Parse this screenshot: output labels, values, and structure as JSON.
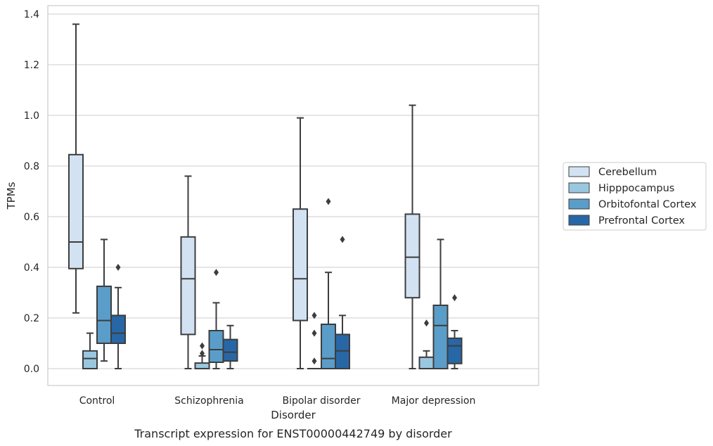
{
  "chart_data": {
    "type": "box",
    "title": "",
    "caption": "Transcript expression for ENST00000442749 by disorder",
    "xlabel": "Disorder",
    "ylabel": "TPMs",
    "ylim": [
      -0.065,
      1.43
    ],
    "yticks": [
      "0.0",
      "0.2",
      "0.4",
      "0.6",
      "0.8",
      "1.0",
      "1.2",
      "1.4"
    ],
    "grid": "horizontal",
    "legend_position": "right",
    "categories": [
      "Control",
      "Schizophrenia",
      "Bipolar disorder",
      "Major depression"
    ],
    "series": [
      {
        "name": "Cerebellum",
        "color": "#d2e2f2",
        "boxes": [
          {
            "whislo": 0.22,
            "q1": 0.395,
            "med": 0.5,
            "q3": 0.845,
            "whishi": 1.36,
            "fliers": []
          },
          {
            "whislo": 0.0,
            "q1": 0.135,
            "med": 0.355,
            "q3": 0.52,
            "whishi": 0.76,
            "fliers": []
          },
          {
            "whislo": 0.0,
            "q1": 0.19,
            "med": 0.355,
            "q3": 0.63,
            "whishi": 0.99,
            "fliers": []
          },
          {
            "whislo": 0.0,
            "q1": 0.28,
            "med": 0.44,
            "q3": 0.61,
            "whishi": 1.04,
            "fliers": []
          }
        ]
      },
      {
        "name": "Hipppocampus",
        "color": "#9ac7e0",
        "boxes": [
          {
            "whislo": 0.0,
            "q1": 0.0,
            "med": 0.04,
            "q3": 0.07,
            "whishi": 0.14,
            "fliers": []
          },
          {
            "whislo": 0.0,
            "q1": 0.0,
            "med": 0.0,
            "q3": 0.022,
            "whishi": 0.05,
            "fliers": [
              0.06,
              0.09
            ]
          },
          {
            "whislo": 0.0,
            "q1": 0.0,
            "med": 0.0,
            "q3": 0.0,
            "whishi": 0.0,
            "fliers": [
              0.03,
              0.14,
              0.21
            ]
          },
          {
            "whislo": 0.0,
            "q1": 0.0,
            "med": 0.0,
            "q3": 0.045,
            "whishi": 0.07,
            "fliers": [
              0.18
            ]
          }
        ]
      },
      {
        "name": "Orbitofontal Cortex",
        "color": "#5b9dc9",
        "boxes": [
          {
            "whislo": 0.03,
            "q1": 0.1,
            "med": 0.19,
            "q3": 0.325,
            "whishi": 0.51,
            "fliers": []
          },
          {
            "whislo": 0.0,
            "q1": 0.025,
            "med": 0.075,
            "q3": 0.15,
            "whishi": 0.26,
            "fliers": [
              0.38
            ]
          },
          {
            "whislo": 0.0,
            "q1": 0.0,
            "med": 0.04,
            "q3": 0.175,
            "whishi": 0.38,
            "fliers": [
              0.66
            ]
          },
          {
            "whislo": 0.0,
            "q1": 0.0,
            "med": 0.17,
            "q3": 0.25,
            "whishi": 0.51,
            "fliers": []
          }
        ]
      },
      {
        "name": "Prefrontal Cortex",
        "color": "#2867a6",
        "boxes": [
          {
            "whislo": 0.0,
            "q1": 0.1,
            "med": 0.14,
            "q3": 0.21,
            "whishi": 0.32,
            "fliers": [
              0.4
            ]
          },
          {
            "whislo": 0.0,
            "q1": 0.03,
            "med": 0.065,
            "q3": 0.115,
            "whishi": 0.17,
            "fliers": []
          },
          {
            "whislo": 0.0,
            "q1": 0.0,
            "med": 0.07,
            "q3": 0.135,
            "whishi": 0.21,
            "fliers": [
              0.51
            ]
          },
          {
            "whislo": 0.0,
            "q1": 0.02,
            "med": 0.09,
            "q3": 0.12,
            "whishi": 0.15,
            "fliers": [
              0.28
            ]
          }
        ]
      }
    ]
  },
  "colors": {
    "line": "#3d3d3d",
    "grid": "#cccccc",
    "frame": "#cccccc"
  }
}
